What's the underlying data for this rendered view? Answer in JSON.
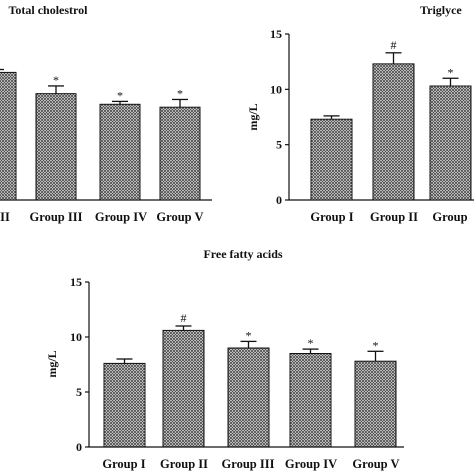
{
  "chart_data": [
    {
      "type": "bar",
      "title": "Total cholestrol",
      "categories": [
        "p II",
        "Group III",
        "Group IV",
        "Group V"
      ],
      "values": [
        13.2,
        11.0,
        9.9,
        9.6
      ],
      "errors": [
        0.3,
        0.8,
        0.3,
        0.8
      ],
      "significance": [
        "",
        "*",
        "*",
        "*"
      ],
      "ylabel": "",
      "ylim": [
        0,
        15
      ],
      "yticks": [],
      "grid": false,
      "pattern": "crosshatch"
    },
    {
      "type": "bar",
      "title": "Triglyce",
      "categories": [
        "Group I",
        "Group II",
        "Group"
      ],
      "values": [
        7.3,
        12.3,
        10.3
      ],
      "errors": [
        0.3,
        1.0,
        0.7
      ],
      "significance": [
        "",
        "#",
        "*"
      ],
      "ylabel": "mg/L",
      "ylim": [
        0,
        15
      ],
      "yticks": [
        "0",
        "5",
        "10",
        "15"
      ],
      "grid": false,
      "pattern": "crosshatch"
    },
    {
      "type": "bar",
      "title": "Free fatty acids",
      "categories": [
        "Group I",
        "Group II",
        "Group III",
        "Group IV",
        "Group V"
      ],
      "values": [
        7.6,
        10.6,
        9.0,
        8.5,
        7.8
      ],
      "errors": [
        0.4,
        0.4,
        0.6,
        0.4,
        0.9
      ],
      "significance": [
        "",
        "#",
        "*",
        "*",
        "*"
      ],
      "ylabel": "mg/L",
      "ylim": [
        0,
        15
      ],
      "yticks": [
        "0",
        "5",
        "10",
        "15"
      ],
      "grid": false,
      "pattern": "crosshatch"
    }
  ]
}
